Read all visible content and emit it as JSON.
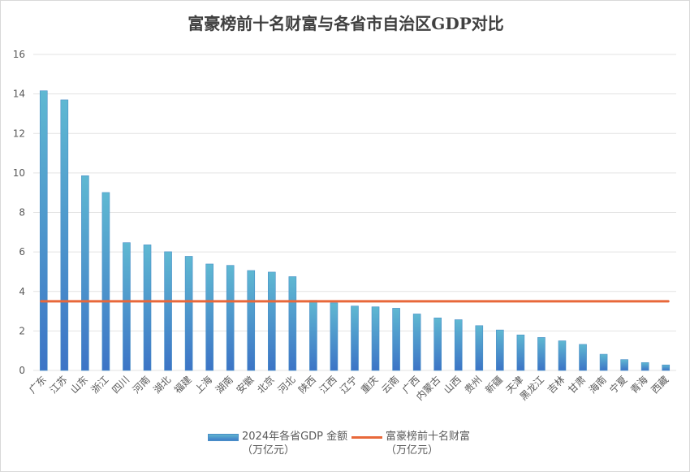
{
  "chart_data": {
    "type": "bar",
    "title": "富豪榜前十名财富与各省市自治区GDP对比",
    "categories": [
      "广东",
      "江苏",
      "山东",
      "浙江",
      "四川",
      "河南",
      "湖北",
      "福建",
      "上海",
      "湖南",
      "安徽",
      "北京",
      "河北",
      "陕西",
      "江西",
      "辽宁",
      "重庆",
      "云南",
      "广西",
      "内蒙古",
      "山西",
      "贵州",
      "新疆",
      "天津",
      "黑龙江",
      "吉林",
      "甘肃",
      "海南",
      "宁夏",
      "青海",
      "西藏"
    ],
    "series": [
      {
        "name": "2024年各省GDP 金额（万亿元）",
        "legend_line1": "2024年各省GDP 金额",
        "legend_line2": "（万亿元）",
        "type": "bar",
        "color": "#4a9fd0",
        "values": [
          14.16,
          13.7,
          9.86,
          9.01,
          6.47,
          6.36,
          6.01,
          5.78,
          5.39,
          5.32,
          5.06,
          4.98,
          4.75,
          3.55,
          3.42,
          3.26,
          3.22,
          3.15,
          2.86,
          2.66,
          2.57,
          2.27,
          2.05,
          1.8,
          1.67,
          1.5,
          1.32,
          0.82,
          0.55,
          0.4,
          0.28
        ]
      },
      {
        "name": "富豪榜前十名财富（万亿元）",
        "legend_line1": "富豪榜前十名财富",
        "legend_line2": "（万亿元）",
        "type": "line",
        "color": "#e8683a",
        "value": 3.5
      }
    ],
    "y_ticks": [
      "0",
      "2",
      "4",
      "6",
      "8",
      "10",
      "12",
      "14",
      "16"
    ],
    "ylim": [
      0,
      16
    ],
    "grid": true,
    "legend_position": "bottom"
  }
}
